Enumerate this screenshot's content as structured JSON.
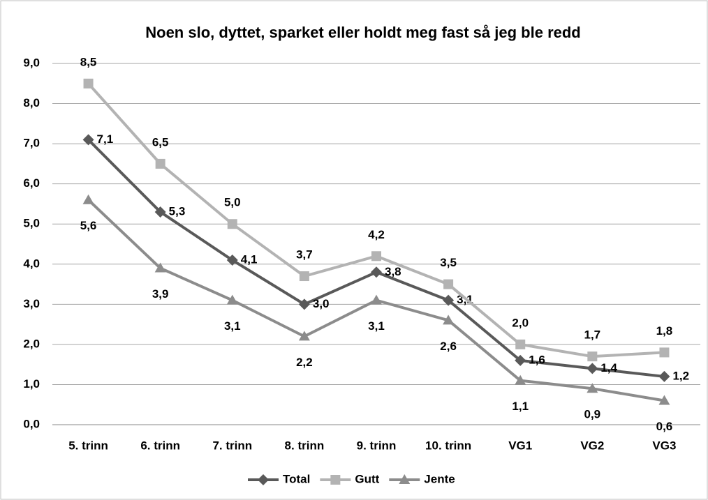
{
  "chart_data": {
    "type": "line",
    "title": "Noen slo, dyttet, sparket eller holdt meg fast så jeg ble redd",
    "categories": [
      "5. trinn",
      "6. trinn",
      "7. trinn",
      "8. trinn",
      "9. trinn",
      "10. trinn",
      "VG1",
      "VG2",
      "VG3"
    ],
    "series": [
      {
        "name": "Total",
        "color": "#595959",
        "marker": "diamond",
        "values": [
          7.1,
          5.3,
          4.1,
          3.0,
          3.8,
          3.1,
          1.6,
          1.4,
          1.2
        ],
        "value_labels": [
          "7,1",
          "5,3",
          "4,1",
          "3,0",
          "3,8",
          "3,1",
          "1,6",
          "1,4",
          "1,2"
        ]
      },
      {
        "name": "Gutt",
        "color": "#b3b3b3",
        "marker": "square",
        "values": [
          8.5,
          6.5,
          5.0,
          3.7,
          4.2,
          3.5,
          2.0,
          1.7,
          1.8
        ],
        "value_labels": [
          "8,5",
          "6,5",
          "5,0",
          "3,7",
          "4,2",
          "3,5",
          "2,0",
          "1,7",
          "1,8"
        ]
      },
      {
        "name": "Jente",
        "color": "#8c8c8c",
        "marker": "triangle",
        "values": [
          5.6,
          3.9,
          3.1,
          2.2,
          3.1,
          2.6,
          1.1,
          0.9,
          0.6
        ],
        "value_labels": [
          "5,6",
          "3,9",
          "3,1",
          "2,2",
          "3,1",
          "2,6",
          "1,1",
          "0,9",
          "0,6"
        ]
      }
    ],
    "ylim": [
      0,
      9
    ],
    "yticks": [
      {
        "value": 0,
        "label": "0,0"
      },
      {
        "value": 1,
        "label": "1,0"
      },
      {
        "value": 2,
        "label": "2,0"
      },
      {
        "value": 3,
        "label": "3,0"
      },
      {
        "value": 4,
        "label": "4,0"
      },
      {
        "value": 5,
        "label": "5,0"
      },
      {
        "value": 6,
        "label": "6,0"
      },
      {
        "value": 7,
        "label": "7,0"
      },
      {
        "value": 8,
        "label": "8,0"
      },
      {
        "value": 9,
        "label": "9,0"
      }
    ],
    "grid": true,
    "legend": "bottom"
  }
}
